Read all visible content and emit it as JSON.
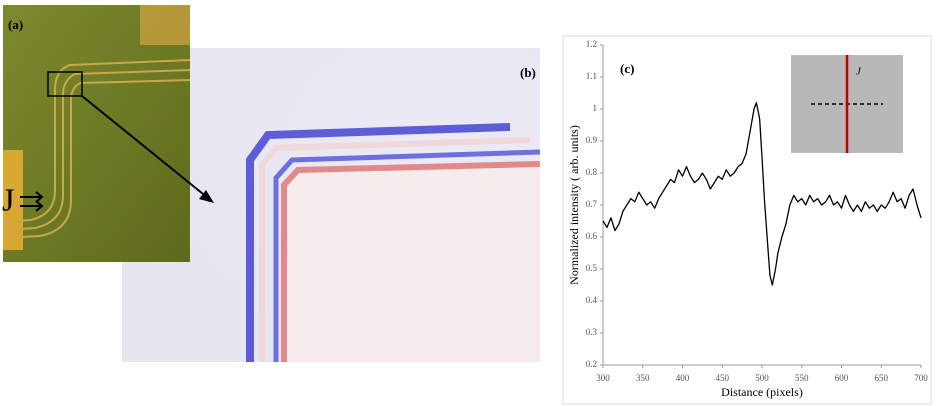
{
  "panels": {
    "a": {
      "label": "(a)",
      "current": "J"
    },
    "b": {
      "label": "(b)"
    }
  },
  "chart_data": {
    "type": "line",
    "annotations": [
      "(c)",
      "J"
    ],
    "x_label": "Distance (pixels)",
    "y_label": "Normalized intensity ( arb. units)",
    "color": "#000000",
    "x": [
      300,
      305,
      310,
      315,
      320,
      325,
      330,
      335,
      340,
      345,
      350,
      355,
      360,
      365,
      370,
      375,
      380,
      385,
      390,
      395,
      400,
      405,
      410,
      415,
      420,
      425,
      430,
      435,
      440,
      445,
      450,
      455,
      460,
      465,
      470,
      475,
      480,
      485,
      490,
      493,
      497,
      500,
      503,
      507,
      510,
      513,
      517,
      520,
      525,
      530,
      535,
      540,
      545,
      550,
      555,
      560,
      565,
      570,
      575,
      580,
      585,
      590,
      595,
      600,
      605,
      610,
      615,
      620,
      625,
      630,
      635,
      640,
      645,
      650,
      655,
      660,
      665,
      670,
      675,
      680,
      685,
      690,
      695,
      700
    ],
    "values": [
      0.65,
      0.63,
      0.66,
      0.62,
      0.64,
      0.68,
      0.7,
      0.72,
      0.71,
      0.74,
      0.72,
      0.7,
      0.71,
      0.69,
      0.72,
      0.74,
      0.76,
      0.78,
      0.77,
      0.81,
      0.79,
      0.82,
      0.79,
      0.77,
      0.78,
      0.8,
      0.78,
      0.75,
      0.77,
      0.79,
      0.78,
      0.81,
      0.79,
      0.8,
      0.82,
      0.83,
      0.86,
      0.93,
      1.0,
      1.02,
      0.97,
      0.85,
      0.72,
      0.58,
      0.48,
      0.45,
      0.5,
      0.55,
      0.6,
      0.64,
      0.7,
      0.73,
      0.71,
      0.72,
      0.7,
      0.73,
      0.71,
      0.72,
      0.7,
      0.71,
      0.73,
      0.7,
      0.71,
      0.69,
      0.73,
      0.7,
      0.68,
      0.7,
      0.68,
      0.71,
      0.69,
      0.7,
      0.68,
      0.7,
      0.69,
      0.71,
      0.74,
      0.71,
      0.72,
      0.69,
      0.73,
      0.75,
      0.7,
      0.66
    ],
    "xlim": [
      300,
      700
    ],
    "xticks": [
      300,
      350,
      400,
      450,
      500,
      550,
      600,
      650,
      700
    ],
    "ylim": [
      0.2,
      1.2
    ],
    "yticks": [
      0.2,
      0.3,
      0.4,
      0.5,
      0.6,
      0.7,
      0.8,
      0.9,
      1,
      1.1,
      1.2
    ]
  }
}
